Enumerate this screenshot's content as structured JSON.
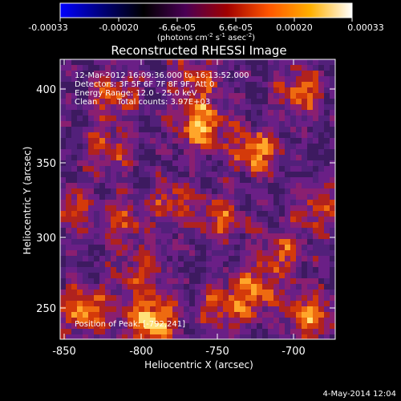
{
  "colorbar": {
    "tick_labels": [
      "-0.00033",
      "-0.00020",
      "-6.6e-05",
      "6.6e-05",
      "0.00020",
      "0.00033"
    ],
    "units_prefix": "(photons cm",
    "units_exp1": "-2",
    "units_mid": " s",
    "units_exp2": "-1",
    "units_end": " asec",
    "units_exp3": "-2",
    "units_close": ")",
    "gradient_colors": [
      "#0000ff",
      "#00007a",
      "#000000",
      "#4a0055",
      "#a00000",
      "#ff5500",
      "#ffb000",
      "#ffffff"
    ]
  },
  "plot": {
    "title": "Reconstructed RHESSI Image",
    "xlabel": "Heliocentric X (arcsec)",
    "ylabel": "Heliocentric Y (arcsec)",
    "xticks": [
      "-850",
      "-800",
      "-750",
      "-700"
    ],
    "yticks": [
      "400",
      "350",
      "300",
      "250"
    ],
    "xlim": [
      -855,
      -665
    ],
    "ylim": [
      228,
      422
    ]
  },
  "annotations": {
    "time_range": "12-Mar-2012 16:09:36.000 to 16:13:52.000",
    "detectors": "Detectors: 3F 5F 6F 7F 8F 9F, Att 0",
    "energy": "Energy Range: 12.0 - 25.0 keV",
    "clean_label": "Clean",
    "total_counts": "Total counts: 3.97E+03",
    "peak": "Position of Peak: [-792,241]"
  },
  "footer": {
    "date": "4-May-2014 12:04"
  },
  "image_palette": [
    "#3d1a60",
    "#52207a",
    "#6a1f86",
    "#8a1f70",
    "#b0221e",
    "#d43a0a",
    "#ee6a10",
    "#ffa62a",
    "#ffe27a"
  ],
  "hotspots_arcsec": [
    {
      "x": -792,
      "y": 241,
      "level": 1.0
    },
    {
      "x": -758,
      "y": 375,
      "level": 0.85
    },
    {
      "x": -720,
      "y": 358,
      "level": 0.75
    },
    {
      "x": -838,
      "y": 248,
      "level": 0.8
    },
    {
      "x": -682,
      "y": 244,
      "level": 0.75
    },
    {
      "x": -688,
      "y": 400,
      "level": 0.65
    },
    {
      "x": -818,
      "y": 398,
      "level": 0.6
    },
    {
      "x": -762,
      "y": 408,
      "level": 0.6
    },
    {
      "x": -720,
      "y": 262,
      "level": 0.6
    },
    {
      "x": -822,
      "y": 360,
      "level": 0.55
    },
    {
      "x": -776,
      "y": 322,
      "level": 0.55
    },
    {
      "x": -812,
      "y": 310,
      "level": 0.5
    },
    {
      "x": -742,
      "y": 312,
      "level": 0.55
    },
    {
      "x": -700,
      "y": 288,
      "level": 0.5
    },
    {
      "x": -848,
      "y": 318,
      "level": 0.5
    },
    {
      "x": -742,
      "y": 250,
      "level": 0.55
    },
    {
      "x": -676,
      "y": 320,
      "level": 0.5
    },
    {
      "x": -800,
      "y": 275,
      "level": 0.45
    }
  ]
}
